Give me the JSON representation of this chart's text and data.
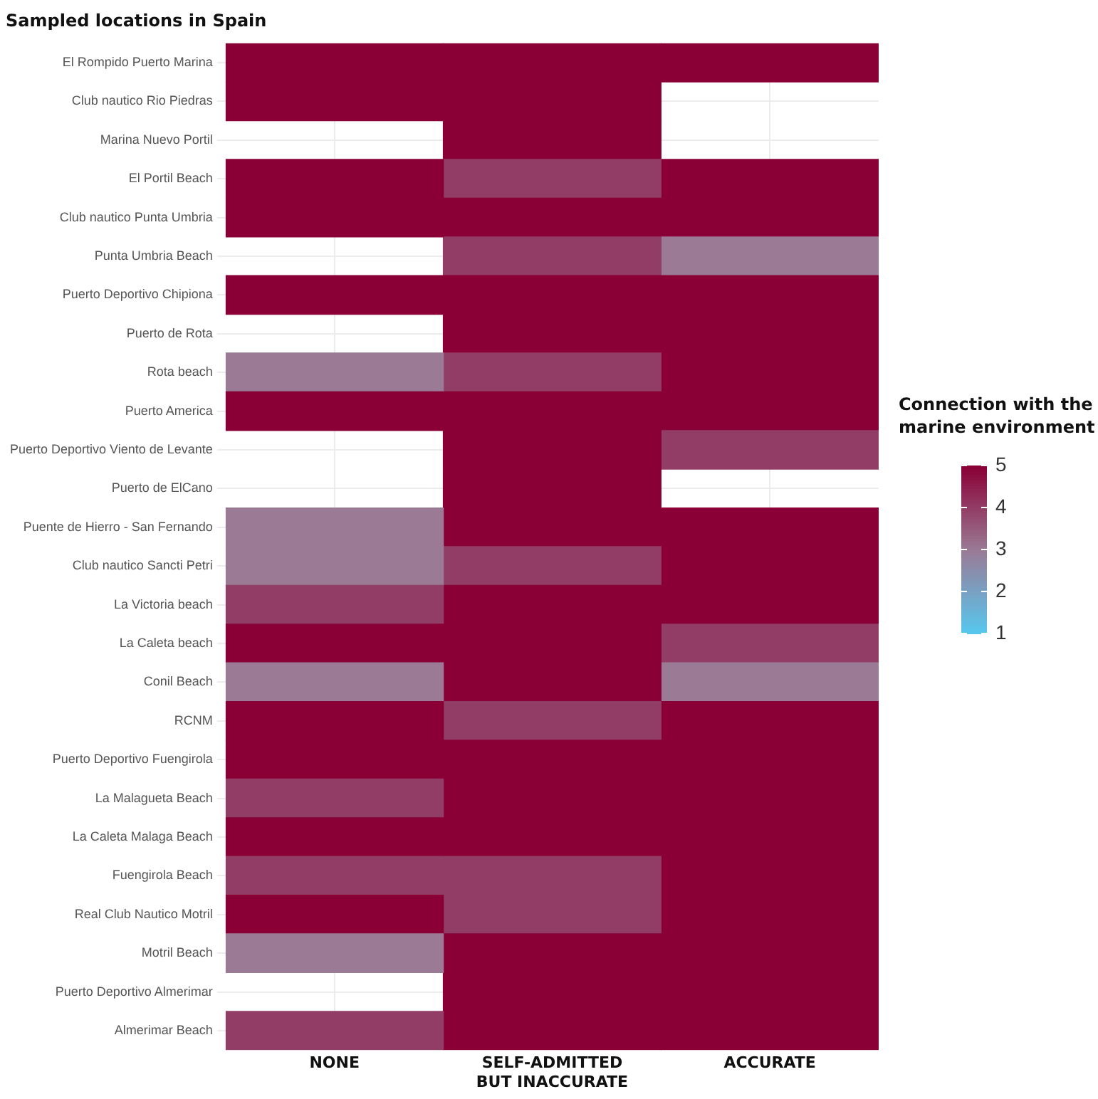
{
  "chart_data": {
    "type": "heatmap",
    "title": "Sampled locations in Spain",
    "clabel": "Connection with the marine environment",
    "categories": [
      "NONE",
      "SELF-ADMITTED BUT INACCURATE",
      "ACCURATE"
    ],
    "y_categories": [
      "El Rompido Puerto Marina",
      "Club nautico Rio Piedras",
      "Marina Nuevo Portil",
      "El Portil Beach",
      "Club nautico Punta Umbria",
      "Punta Umbria Beach",
      "Puerto Deportivo Chipiona",
      "Puerto de Rota",
      "Rota beach",
      "Puerto America",
      "Puerto Deportivo Viento de Levante",
      "Puerto de ElCano",
      "Puente de Hierro - San Fernando",
      "Club nautico Sancti Petri",
      "La Victoria beach",
      "La Caleta beach",
      "Conil Beach",
      "RCNM",
      "Puerto Deportivo Fuengirola",
      "La Malagueta Beach",
      "La Caleta Malaga Beach",
      "Fuengirola Beach",
      "Real Club Nautico Motril",
      "Motril Beach",
      "Puerto Deportivo Almerimar",
      "Almerimar Beach"
    ],
    "cells": [
      [
        5,
        5,
        5
      ],
      [
        5,
        5,
        null
      ],
      [
        null,
        5,
        null
      ],
      [
        5,
        4,
        5
      ],
      [
        5,
        5,
        5
      ],
      [
        null,
        4,
        3
      ],
      [
        5,
        5,
        5
      ],
      [
        null,
        5,
        5
      ],
      [
        3,
        4,
        5
      ],
      [
        5,
        5,
        5
      ],
      [
        null,
        5,
        4
      ],
      [
        null,
        5,
        null
      ],
      [
        3,
        5,
        5
      ],
      [
        3,
        4,
        5
      ],
      [
        4,
        5,
        5
      ],
      [
        5,
        5,
        4
      ],
      [
        3,
        5,
        3
      ],
      [
        5,
        4,
        5
      ],
      [
        5,
        5,
        5
      ],
      [
        4,
        5,
        5
      ],
      [
        5,
        5,
        5
      ],
      [
        4,
        4,
        5
      ],
      [
        5,
        4,
        5
      ],
      [
        3,
        5,
        5
      ],
      [
        null,
        5,
        5
      ],
      [
        4,
        5,
        5
      ]
    ],
    "clim": [
      1,
      5
    ],
    "cticks": [
      1,
      2,
      3,
      4,
      5
    ],
    "colors": [
      "#56c8f0",
      "#9a7a95",
      "#8a0036"
    ],
    "grid": true
  }
}
